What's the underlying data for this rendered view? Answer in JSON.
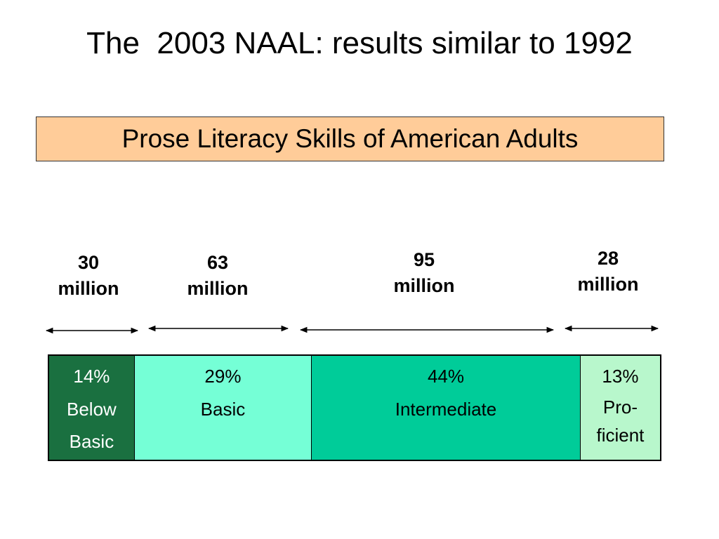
{
  "slide": {
    "title": "The  2003 NAAL: results similar to 1992",
    "subtitle": "Prose Literacy Skills of American Adults"
  },
  "colors": {
    "subtitle_bg": "#FFCC99",
    "below_basic": "#1A7040",
    "basic": "#75FFD6",
    "intermediate": "#00CC99",
    "proficient": "#B8F7CC"
  },
  "chart_data": {
    "type": "bar",
    "orientation": "horizontal-stacked",
    "title": "Prose Literacy Skills of American Adults",
    "categories": [
      "Below Basic",
      "Basic",
      "Intermediate",
      "Proficient"
    ],
    "values": [
      14,
      29,
      44,
      13
    ],
    "unit": "%",
    "population": [
      {
        "number": "30",
        "unit": "million"
      },
      {
        "number": "63",
        "unit": "million"
      },
      {
        "number": "95",
        "unit": "million"
      },
      {
        "number": "28",
        "unit": "million"
      }
    ],
    "segments": [
      {
        "pct": "14%",
        "label": "Below\nBasic",
        "color": "#1A7040"
      },
      {
        "pct": "29%",
        "label": "Basic",
        "color": "#75FFD6"
      },
      {
        "pct": "44%",
        "label": "Intermediate",
        "color": "#00CC99"
      },
      {
        "pct": "13%",
        "label": "Pro-\nficient",
        "color": "#B8F7CC"
      }
    ]
  }
}
